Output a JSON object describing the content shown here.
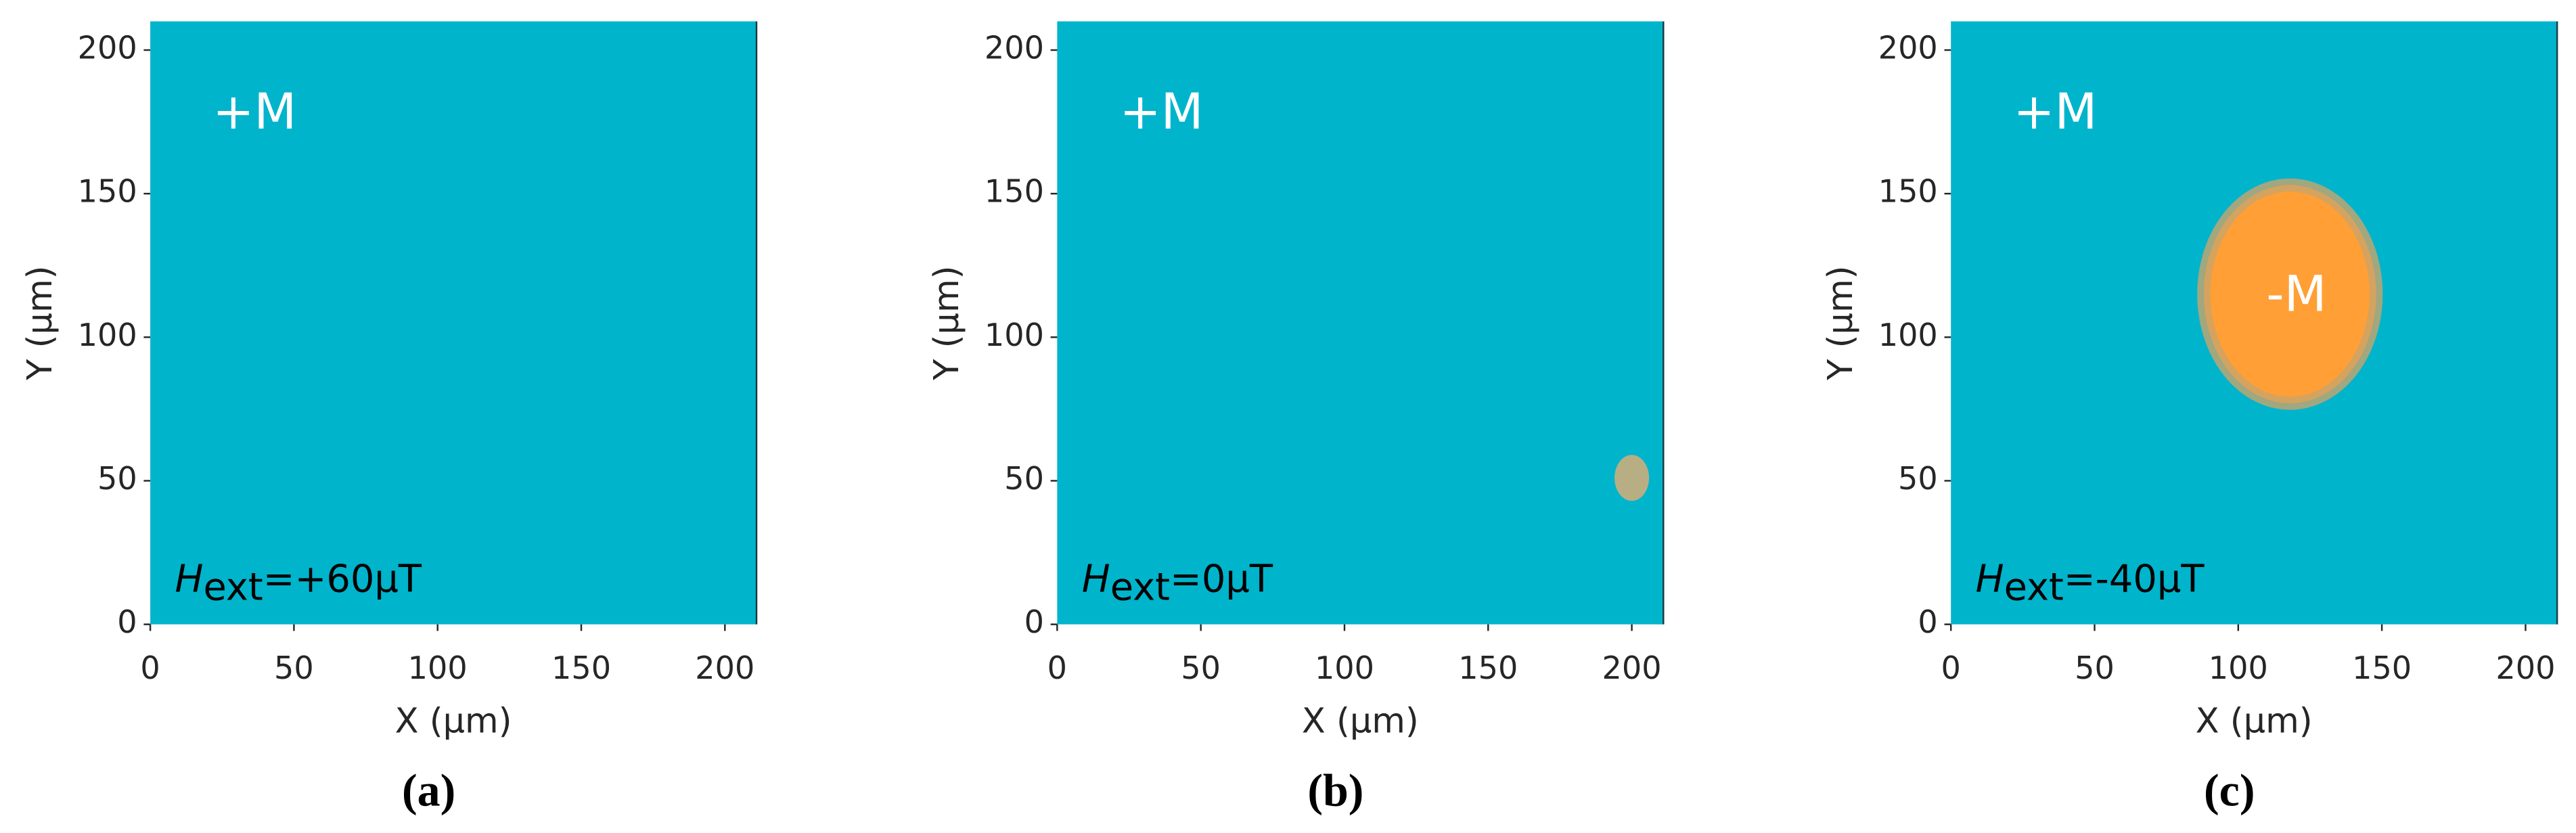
{
  "chart_data": [
    {
      "type": "heatmap",
      "background_color": "#00b4cc",
      "inner_label": "+M",
      "annotation": {
        "symbol": "H",
        "subscript": "ext",
        "text": "=+60μT"
      },
      "xlabel": "X (μm)",
      "ylabel": "Y (μm)",
      "panel_label": "(a)",
      "xlim": [
        0,
        211
      ],
      "ylim": [
        0,
        210
      ],
      "xticks": [
        0,
        50,
        100,
        150,
        200
      ],
      "yticks": [
        0,
        50,
        100,
        150,
        200
      ],
      "domains": []
    },
    {
      "type": "heatmap",
      "background_color": "#00b4cc",
      "inner_label": "+M",
      "annotation": {
        "symbol": "H",
        "subscript": "ext",
        "text": "=0μT"
      },
      "xlabel": "X (μm)",
      "ylabel": "Y (μm)",
      "panel_label": "(b)",
      "xlim": [
        0,
        211
      ],
      "ylim": [
        0,
        210
      ],
      "xticks": [
        0,
        50,
        100,
        150,
        200
      ],
      "yticks": [
        0,
        50,
        100,
        150,
        200
      ],
      "domains": [
        {
          "x": 200,
          "y": 51,
          "rx": 6,
          "ry": 8,
          "color": "#b8ae84"
        }
      ]
    },
    {
      "type": "heatmap",
      "background_color": "#00b4cc",
      "inner_label": "+M",
      "annotation": {
        "symbol": "H",
        "subscript": "ext",
        "text": "=-40μT"
      },
      "xlabel": "X (μm)",
      "ylabel": "Y (μm)",
      "panel_label": "(c)",
      "xlim": [
        0,
        211
      ],
      "ylim": [
        0,
        210
      ],
      "xticks": [
        0,
        50,
        100,
        150,
        200
      ],
      "yticks": [
        0,
        50,
        100,
        150,
        200
      ],
      "domains": [
        {
          "label": "-M",
          "x": 118,
          "y": 115,
          "rx": 30,
          "ry": 38,
          "color": "#ff9f35"
        }
      ]
    }
  ]
}
